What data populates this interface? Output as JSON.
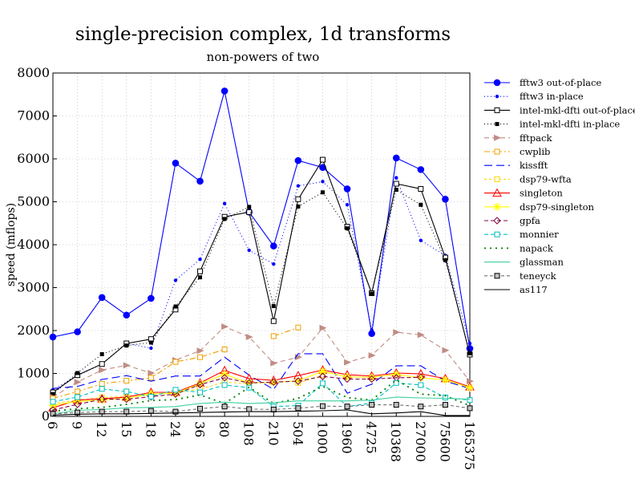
{
  "chart_data": {
    "type": "line",
    "title": "single-precision complex, 1d transforms",
    "subtitle": "non-powers of two",
    "xlabel": "",
    "ylabel": "speed (mflops)",
    "ylim": [
      0,
      8000
    ],
    "yticks": [
      0,
      1000,
      2000,
      3000,
      4000,
      5000,
      6000,
      7000,
      8000
    ],
    "categories": [
      "6",
      "9",
      "12",
      "15",
      "18",
      "24",
      "36",
      "80",
      "108",
      "210",
      "504",
      "1000",
      "1960",
      "4725",
      "10368",
      "27000",
      "75600",
      "165375"
    ],
    "grid": true,
    "legend_position": "right",
    "series": [
      {
        "name": "fftw3 out-of-place",
        "color": "#0000ff",
        "dash": "",
        "marker": "circle-filled",
        "values": [
          1850,
          1970,
          2770,
          2360,
          2750,
          5900,
          5480,
          7580,
          4760,
          3970,
          5960,
          5800,
          5300,
          1930,
          6020,
          5750,
          5060,
          1580
        ]
      },
      {
        "name": "fftw3 in-place",
        "color": "#0000ff",
        "dash": "1,3",
        "marker": "dot",
        "values": [
          620,
          950,
          1220,
          1700,
          1590,
          3170,
          3660,
          4960,
          3870,
          3550,
          5370,
          5470,
          4930,
          2010,
          5560,
          4100,
          3750,
          1700
        ]
      },
      {
        "name": "intel-mkl-dfti out-of-place",
        "color": "#000000",
        "dash": "",
        "marker": "square-open",
        "values": [
          560,
          960,
          1220,
          1700,
          1800,
          2490,
          3380,
          4650,
          4760,
          2220,
          5060,
          5980,
          4420,
          2870,
          5420,
          5300,
          3700,
          1440
        ]
      },
      {
        "name": "intel-mkl-dfti in-place",
        "color": "#000000",
        "dash": "1,3",
        "marker": "square-filled",
        "values": [
          520,
          1010,
          1450,
          1650,
          1720,
          2560,
          3240,
          4600,
          4880,
          2570,
          4890,
          5220,
          4380,
          2860,
          5280,
          4930,
          3640,
          1470
        ]
      },
      {
        "name": "fftpack",
        "color": "#c08c84",
        "dash": "6,4",
        "marker": "triangle-right",
        "values": [
          450,
          800,
          1080,
          1190,
          1010,
          1310,
          1530,
          2090,
          1850,
          1240,
          1380,
          2060,
          1260,
          1420,
          1960,
          1900,
          1540,
          820
        ]
      },
      {
        "name": "cwplib",
        "color": "#f0a000",
        "dash": "7,3,2,3",
        "marker": "square-open",
        "values": [
          420,
          580,
          760,
          830,
          900,
          1270,
          1380,
          1560,
          null,
          1870,
          2070,
          null,
          null,
          null,
          null,
          null,
          null,
          null
        ]
      },
      {
        "name": "kissfft",
        "color": "#0000ff",
        "dash": "10,5",
        "marker": "",
        "values": [
          650,
          700,
          860,
          950,
          820,
          940,
          940,
          1380,
          960,
          630,
          1460,
          1460,
          540,
          750,
          1180,
          1180,
          820,
          650
        ]
      },
      {
        "name": "dsp79-wfta",
        "color": "#ffd700",
        "dash": "3,3",
        "marker": "square-open",
        "values": [
          300,
          380,
          440,
          470,
          520,
          550,
          640,
          800,
          760,
          null,
          780,
          960,
          null,
          null,
          null,
          null,
          null,
          null
        ]
      },
      {
        "name": "singleton",
        "color": "#ff0000",
        "dash": "",
        "marker": "triangle-open",
        "values": [
          200,
          380,
          410,
          450,
          560,
          560,
          780,
          1070,
          880,
          840,
          950,
          1080,
          970,
          940,
          1010,
          990,
          880,
          690
        ]
      },
      {
        "name": "dsp79-singleton",
        "color": "#ffff00",
        "dash": "",
        "marker": "star",
        "values": [
          260,
          350,
          380,
          420,
          520,
          540,
          760,
          980,
          780,
          790,
          830,
          1050,
          920,
          910,
          980,
          900,
          850,
          670
        ]
      },
      {
        "name": "gpfa",
        "color": "#800040",
        "dash": "5,3",
        "marker": "diamond-open",
        "values": [
          150,
          280,
          400,
          400,
          460,
          520,
          740,
          900,
          780,
          800,
          820,
          930,
          870,
          870,
          900,
          910,
          null,
          null
        ]
      },
      {
        "name": "monnier",
        "color": "#00c0c0",
        "dash": "5,3",
        "marker": "square-open",
        "values": [
          340,
          450,
          640,
          580,
          460,
          620,
          560,
          730,
          670,
          230,
          250,
          770,
          230,
          310,
          780,
          730,
          440,
          380
        ]
      },
      {
        "name": "napack",
        "color": "#008000",
        "dash": "2,5",
        "marker": "",
        "values": [
          120,
          180,
          210,
          280,
          370,
          390,
          500,
          300,
          680,
          300,
          420,
          700,
          440,
          380,
          850,
          520,
          480,
          250
        ]
      },
      {
        "name": "glassman",
        "color": "#40d0a0",
        "dash": "",
        "marker": "",
        "values": [
          60,
          140,
          160,
          200,
          210,
          230,
          300,
          330,
          300,
          320,
          360,
          360,
          360,
          380,
          450,
          430,
          420,
          400
        ]
      },
      {
        "name": "teneyck",
        "color": "#707070",
        "dash": "4,3",
        "marker": "square-open-grey",
        "values": [
          60,
          90,
          110,
          110,
          130,
          110,
          180,
          230,
          170,
          160,
          190,
          240,
          230,
          270,
          270,
          230,
          270,
          190
        ]
      },
      {
        "name": "as117",
        "color": "#000000",
        "dash": "",
        "marker": "",
        "values": [
          30,
          50,
          60,
          60,
          70,
          80,
          90,
          100,
          110,
          110,
          120,
          130,
          150,
          60,
          80,
          110,
          20,
          20
        ]
      }
    ]
  }
}
